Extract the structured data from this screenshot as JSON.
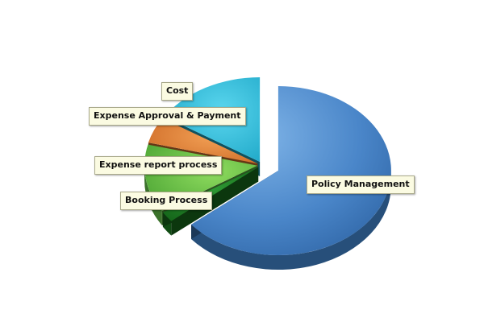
{
  "chart_data": {
    "type": "pie",
    "style": "3d-exploded",
    "slices": [
      {
        "label": "Policy Management",
        "value": 64,
        "color": "#3f7fc4"
      },
      {
        "label": "Booking Process",
        "value": 2,
        "color": "#1a7a1f"
      },
      {
        "label": "Expense report process",
        "value": 13,
        "color": "#5fb845"
      },
      {
        "label": "Expense Approval & Payment",
        "value": 5,
        "color": "#e07a2e"
      },
      {
        "label": "Cost",
        "value": 16,
        "color": "#1fb7d6"
      }
    ]
  }
}
